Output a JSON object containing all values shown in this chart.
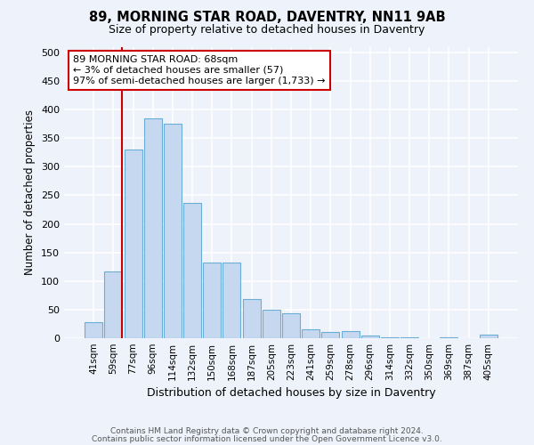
{
  "title1": "89, MORNING STAR ROAD, DAVENTRY, NN11 9AB",
  "title2": "Size of property relative to detached houses in Daventry",
  "xlabel": "Distribution of detached houses by size in Daventry",
  "ylabel": "Number of detached properties",
  "bin_labels": [
    "41sqm",
    "59sqm",
    "77sqm",
    "96sqm",
    "114sqm",
    "132sqm",
    "150sqm",
    "168sqm",
    "187sqm",
    "205sqm",
    "223sqm",
    "241sqm",
    "259sqm",
    "278sqm",
    "296sqm",
    "314sqm",
    "332sqm",
    "350sqm",
    "369sqm",
    "387sqm",
    "405sqm"
  ],
  "bar_heights": [
    28,
    117,
    330,
    385,
    375,
    237,
    133,
    133,
    69,
    50,
    43,
    16,
    11,
    12,
    5,
    2,
    1,
    0,
    1,
    0,
    7
  ],
  "bar_color": "#c5d8f0",
  "bar_edge_color": "#6aaed6",
  "vline_color": "#cc0000",
  "vline_x": 1.45,
  "annotation_line1": "89 MORNING STAR ROAD: 68sqm",
  "annotation_line2": "← 3% of detached houses are smaller (57)",
  "annotation_line3": "97% of semi-detached houses are larger (1,733) →",
  "annotation_box_color": "#ffffff",
  "annotation_box_edge": "#cc0000",
  "ylim": [
    0,
    510
  ],
  "yticks": [
    0,
    50,
    100,
    150,
    200,
    250,
    300,
    350,
    400,
    450,
    500
  ],
  "footer1": "Contains HM Land Registry data © Crown copyright and database right 2024.",
  "footer2": "Contains public sector information licensed under the Open Government Licence v3.0.",
  "bg_color": "#eef2fa",
  "grid_color": "#ffffff",
  "title1_fontsize": 10.5,
  "title2_fontsize": 9
}
